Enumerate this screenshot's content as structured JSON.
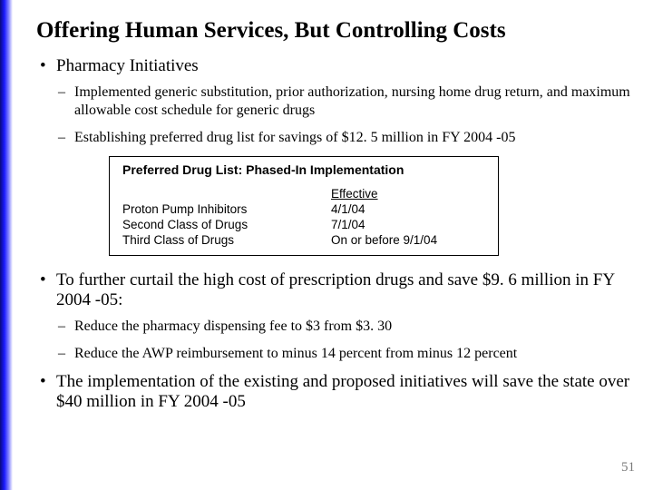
{
  "title": "Offering Human Services, But Controlling Costs",
  "page_number": "51",
  "colors": {
    "accent_gradient_start": "#0a0a7a",
    "accent_gradient_mid": "#1a1aff",
    "background": "#ffffff",
    "text": "#000000",
    "page_num": "#7a7a7a"
  },
  "bullets": [
    {
      "text": "Pharmacy Initiatives",
      "sub": [
        {
          "text": "Implemented generic substitution, prior authorization, nursing home drug return, and maximum allowable cost schedule for generic drugs"
        },
        {
          "text": "Establishing preferred drug list for savings of $12. 5 million in FY 2004 -05"
        }
      ]
    },
    {
      "text": "To further curtail the high cost of prescription drugs and save $9. 6 million in FY 2004 -05:",
      "sub": [
        {
          "text": "Reduce the pharmacy dispensing fee to $3 from $3. 30"
        },
        {
          "text": "Reduce the AWP reimbursement to minus 14 percent from minus 12 percent"
        }
      ]
    },
    {
      "text": "The implementation of the existing and proposed initiatives will save the state over $40 million in FY 2004 -05",
      "sub": []
    }
  ],
  "table": {
    "title": "Preferred Drug List: Phased-In Implementation",
    "header": {
      "col2": "Effective"
    },
    "rows": [
      {
        "label": "Proton Pump Inhibitors",
        "value": "4/1/04"
      },
      {
        "label": "Second Class of Drugs",
        "value": "7/1/04"
      },
      {
        "label": "Third Class of Drugs",
        "value": "On or before 9/1/04"
      }
    ],
    "style": {
      "border_color": "#000000",
      "font_family": "Arial",
      "title_fontsize": 14,
      "body_fontsize": 13.5
    }
  }
}
